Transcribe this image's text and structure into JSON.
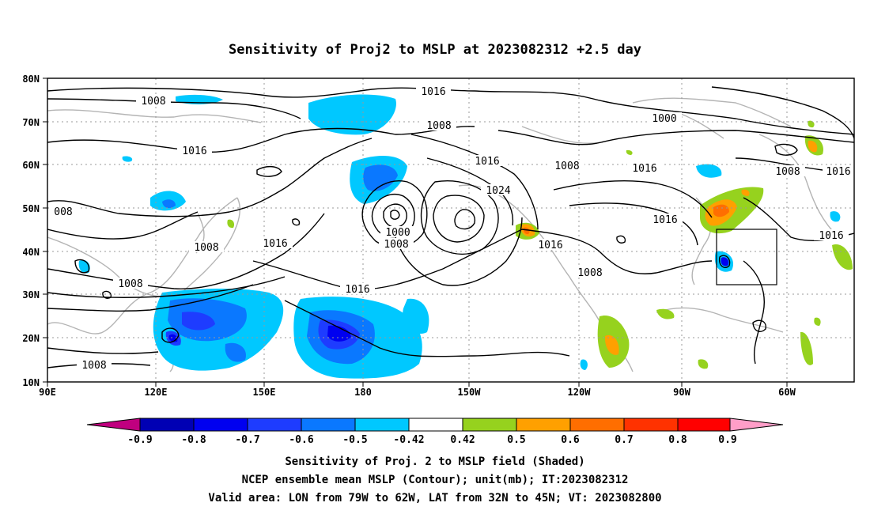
{
  "title": "Sensitivity of Proj2 to MSLP at 2023082312 +2.5 day",
  "lat_labels": [
    "80N",
    "70N",
    "60N",
    "50N",
    "40N",
    "30N",
    "20N",
    "10N"
  ],
  "lon_labels": [
    "90E",
    "120E",
    "150E",
    "180",
    "150W",
    "120W",
    "90W",
    "60W"
  ],
  "contour_labels": [
    {
      "text": "1016"
    },
    {
      "text": "1008"
    },
    {
      "text": "1000"
    },
    {
      "text": "1008"
    },
    {
      "text": "1016"
    },
    {
      "text": "1016"
    },
    {
      "text": "1016"
    },
    {
      "text": "1024"
    },
    {
      "text": "1008"
    },
    {
      "text": "1016"
    },
    {
      "text": "008"
    },
    {
      "text": "1000"
    },
    {
      "text": "1008"
    },
    {
      "text": "1008"
    },
    {
      "text": "1016"
    },
    {
      "text": "1016"
    },
    {
      "text": "1016"
    },
    {
      "text": "1008"
    },
    {
      "text": "1008"
    },
    {
      "text": "1016"
    },
    {
      "text": "1008"
    },
    {
      "text": "1016"
    }
  ],
  "colorbar": {
    "labels": [
      "-0.9",
      "-0.8",
      "-0.7",
      "-0.6",
      "-0.5",
      "-0.42",
      "0.42",
      "0.5",
      "0.6",
      "0.7",
      "0.8",
      "0.9"
    ],
    "colors": [
      "#c0007f",
      "#0000b4",
      "#0000f0",
      "#1e3cff",
      "#0a78ff",
      "#00c8ff",
      "#ffffff",
      "#96d21e",
      "#ffa000",
      "#ff6e00",
      "#ff3200",
      "#ff0000",
      "#ff9ec8"
    ]
  },
  "captions": [
    "Sensitivity of Proj. 2 to MSLP field (Shaded)",
    "NCEP ensemble mean MSLP (Contour); unit(mb); IT:2023082312",
    "Valid area: LON from 79W to 62W, LAT from 32N to 45N; VT: 2023082800"
  ]
}
